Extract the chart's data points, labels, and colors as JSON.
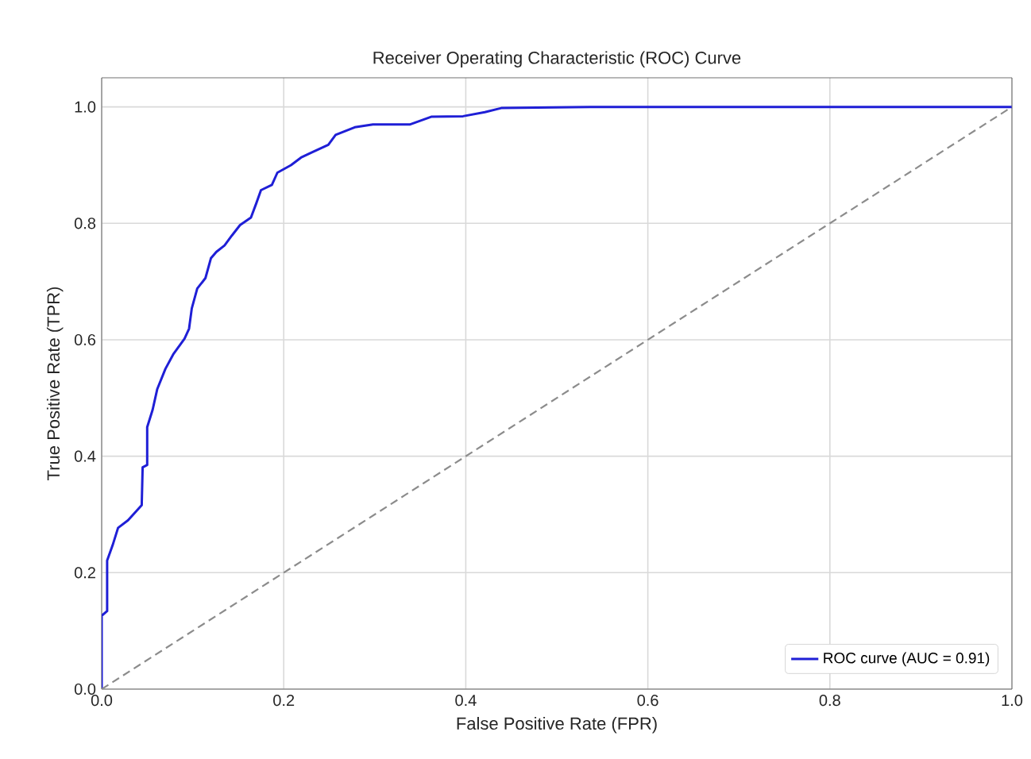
{
  "chart_data": {
    "type": "line",
    "title": "Receiver Operating Characteristic (ROC) Curve",
    "xlabel": "False Positive Rate (FPR)",
    "ylabel": "True Positive Rate (TPR)",
    "xlim": [
      0,
      1
    ],
    "ylim": [
      0,
      1.05
    ],
    "xticks": [
      {
        "value": 0,
        "label": "0.0"
      },
      {
        "value": 0.2,
        "label": "0.2"
      },
      {
        "value": 0.4,
        "label": "0.4"
      },
      {
        "value": 0.6,
        "label": "0.6"
      },
      {
        "value": 0.8,
        "label": "0.8"
      },
      {
        "value": 1,
        "label": "1.0"
      }
    ],
    "yticks": [
      {
        "value": 0,
        "label": "0.0"
      },
      {
        "value": 0.2,
        "label": "0.2"
      },
      {
        "value": 0.4,
        "label": "0.4"
      },
      {
        "value": 0.6,
        "label": "0.6"
      },
      {
        "value": 0.8,
        "label": "0.8"
      },
      {
        "value": 1,
        "label": "1.0"
      }
    ],
    "grid": true,
    "legend": "bottom right",
    "marker": "none",
    "series": [
      {
        "name": "ROC curve (AUC = 0.91)",
        "color": "#1f1fd6",
        "line_style": "solid",
        "x": [
          0,
          0,
          0.006,
          0.006,
          0.012,
          0.018,
          0.029,
          0.044,
          0.045,
          0.05,
          0.05,
          0.056,
          0.061,
          0.07,
          0.079,
          0.091,
          0.096,
          0.099,
          0.105,
          0.114,
          0.12,
          0.126,
          0.135,
          0.143,
          0.152,
          0.164,
          0.17,
          0.175,
          0.187,
          0.193,
          0.208,
          0.219,
          0.231,
          0.249,
          0.257,
          0.278,
          0.298,
          0.339,
          0.362,
          0.397,
          0.421,
          0.439,
          0.537,
          1
        ],
        "values": [
          0,
          0.126,
          0.134,
          0.221,
          0.247,
          0.277,
          0.29,
          0.316,
          0.381,
          0.385,
          0.45,
          0.48,
          0.515,
          0.55,
          0.576,
          0.602,
          0.619,
          0.654,
          0.688,
          0.706,
          0.74,
          0.751,
          0.762,
          0.779,
          0.797,
          0.81,
          0.835,
          0.857,
          0.866,
          0.887,
          0.9,
          0.913,
          0.922,
          0.935,
          0.952,
          0.965,
          0.97,
          0.97,
          0.983,
          0.984,
          0.991,
          0.998,
          1,
          1
        ]
      },
      {
        "color": "#8c8c8c",
        "line_style": "dashed",
        "x": [
          0,
          1
        ],
        "values": [
          0,
          1
        ]
      }
    ]
  }
}
